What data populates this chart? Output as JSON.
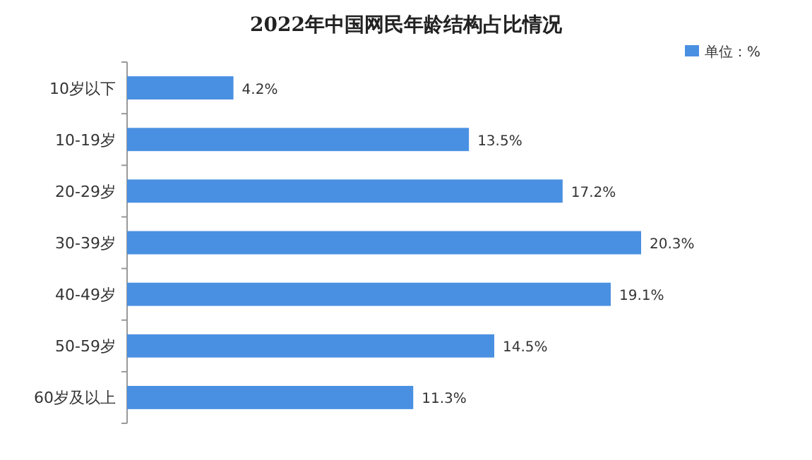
{
  "chart_data": {
    "type": "bar",
    "orientation": "horizontal",
    "title": "2022年中国网民年龄结构占比情况",
    "categories": [
      "10岁以下",
      "10-19岁",
      "20-29岁",
      "30-39岁",
      "40-49岁",
      "50-59岁",
      "60岁及以上"
    ],
    "series": [
      {
        "name": "单位：%",
        "color": "#4a90e2",
        "values": [
          4.2,
          13.5,
          17.2,
          20.3,
          19.1,
          14.5,
          11.3
        ],
        "value_labels": [
          "4.2%",
          "13.5%",
          "17.2%",
          "20.3%",
          "19.1%",
          "14.5%",
          "11.3%"
        ]
      }
    ],
    "legend": "top right"
  }
}
